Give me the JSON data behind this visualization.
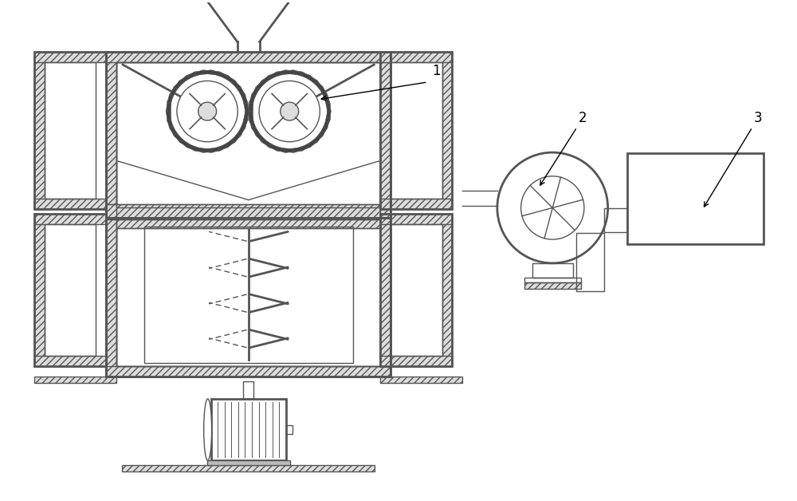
{
  "bg_color": "#ffffff",
  "lc": "#555555",
  "lw": 1.5,
  "lw2": 2.0,
  "lw1": 1.0,
  "label1": "1",
  "label2": "2",
  "label3": "3"
}
